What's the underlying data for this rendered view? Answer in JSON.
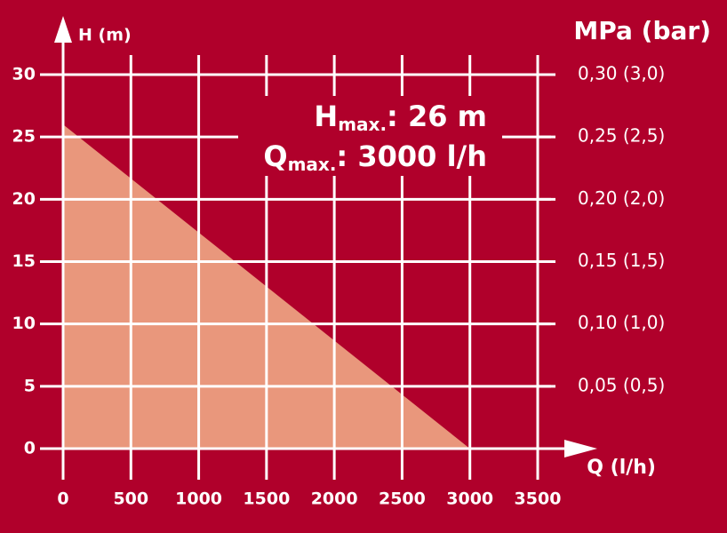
{
  "chart_data": {
    "type": "area",
    "series": [
      {
        "name": null,
        "color": "#e9977c",
        "x": [
          0,
          3000
        ],
        "values": [
          26,
          0
        ]
      }
    ],
    "xlim": [
      0,
      3500
    ],
    "xticks": [
      0,
      500,
      1000,
      1500,
      2000,
      2500,
      3000,
      3500
    ],
    "ylim": [
      0,
      30
    ],
    "yticks": [
      0,
      5,
      10,
      15,
      20,
      25,
      30
    ],
    "y2lim": [
      0,
      0.3
    ],
    "y2ticks": [
      {
        "value": 0.05,
        "label": "0,05 (0,5)"
      },
      {
        "value": 0.1,
        "label": "0,10 (1,0)"
      },
      {
        "value": 0.15,
        "label": "0,15 (1,5)"
      },
      {
        "value": 0.2,
        "label": "0,20 (2,0)"
      },
      {
        "value": 0.25,
        "label": "0,25 (2,5)"
      },
      {
        "value": 0.3,
        "label": "0,30 (3,0)"
      }
    ],
    "ylabel": "H (m)",
    "y2label": "MPa (bar)",
    "xlabel": "Q (l/h)",
    "grid": true,
    "background": "#b0002b",
    "annotations": [
      {
        "main": "H",
        "sub": "max.",
        "rest": ": 26 m"
      },
      {
        "main": "Q",
        "sub": "max.",
        "rest": ": 3000 l/h"
      }
    ]
  }
}
